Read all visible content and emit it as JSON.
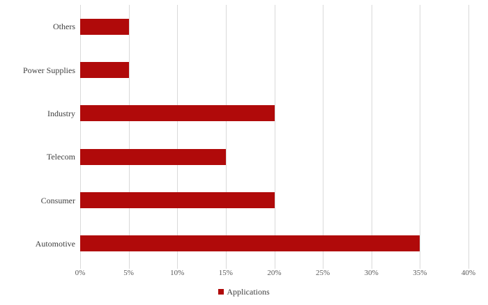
{
  "chart_data": {
    "type": "bar",
    "orientation": "horizontal",
    "title": "",
    "categories": [
      "Others",
      "Power Supplies",
      "Industry",
      "Telecom",
      "Consumer",
      "Automotive"
    ],
    "series": [
      {
        "name": "Applications",
        "values": [
          5,
          5,
          20,
          15,
          20,
          35
        ]
      }
    ],
    "unit": "%",
    "xlim": [
      0,
      40
    ],
    "x_ticks": [
      "0%",
      "5%",
      "10%",
      "15%",
      "20%",
      "25%",
      "30%",
      "35%",
      "40%"
    ],
    "x_tick_step": 5,
    "grid": true,
    "legend_position": "bottom",
    "colors": {
      "bar": "#b00a0a",
      "gridline": "#d9d9d9",
      "category_label": "#3f3f3f",
      "tick_label": "#595959",
      "background": "#ffffff"
    }
  },
  "legend": {
    "label": "Applications"
  }
}
